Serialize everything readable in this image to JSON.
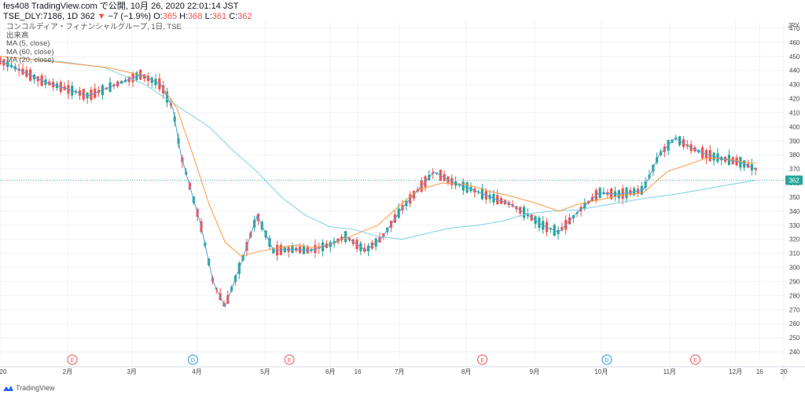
{
  "header": {
    "line1": "fes408 TradingView.com で公開, 10月 26, 2020 22:01:14 JST",
    "symbol": "TSE_DLY:7186, 1D",
    "last": "362",
    "change": "−7 (−1.9%)",
    "o_label": "O:",
    "o": "365",
    "h_label": "H:",
    "h": "368",
    "l_label": "L:",
    "l": "361",
    "c_label": "C:",
    "c": "362"
  },
  "legend": {
    "title": "コンコルディア・フィナンシャルグループ, 1日, TSE",
    "volume": "出来高",
    "ma1": "MA (5, close)",
    "ma2": "MA (60, close)",
    "ma3": "MA (20, close)"
  },
  "footer": {
    "brand": "TradingView"
  },
  "colors": {
    "up": "#26a69a",
    "down": "#ef5350",
    "ma5": "#5b9bd5",
    "ma20": "#ff9a40",
    "ma60": "#7fd0e6",
    "price_line": "#26a69a",
    "grid": "#f0f3fa"
  },
  "chart_data": {
    "type": "candlestick",
    "title": "コンコルディア・フィナンシャルグループ, 1日, TSE",
    "ylabel": "JPY",
    "y_ticks": [
      240,
      250,
      260,
      270,
      280,
      290,
      300,
      310,
      320,
      330,
      340,
      350,
      360,
      370,
      380,
      390,
      400,
      410,
      420,
      430,
      440,
      450,
      460,
      470
    ],
    "ylim": [
      235,
      475
    ],
    "x_ticks": [
      "20",
      "2月",
      "3月",
      "4月",
      "5月",
      "6月",
      "16",
      "7月",
      "8月",
      "9月",
      "10月",
      "11月",
      "12月",
      "16",
      "20"
    ],
    "current_price": 362,
    "events": [
      "E",
      "D",
      "E",
      "E",
      "D",
      "E"
    ],
    "ma5": [
      [
        2020.0,
        447
      ],
      [
        2020.055,
        432
      ],
      [
        2020.11,
        422
      ],
      [
        2020.175,
        437
      ],
      [
        2020.2,
        430
      ],
      [
        2020.215,
        413
      ],
      [
        2020.225,
        380
      ],
      [
        2020.25,
        330
      ],
      [
        2020.265,
        290
      ],
      [
        2020.28,
        272
      ],
      [
        2020.3,
        303
      ],
      [
        2020.32,
        337
      ],
      [
        2020.34,
        312
      ],
      [
        2020.365,
        313
      ],
      [
        2020.385,
        312
      ],
      [
        2020.41,
        316
      ],
      [
        2020.43,
        322
      ],
      [
        2020.455,
        312
      ],
      [
        2020.475,
        321
      ],
      [
        2020.5,
        342
      ],
      [
        2020.52,
        355
      ],
      [
        2020.54,
        368
      ],
      [
        2020.565,
        360
      ],
      [
        2020.585,
        356
      ],
      [
        2020.61,
        350
      ],
      [
        2020.635,
        345
      ],
      [
        2020.655,
        338
      ],
      [
        2020.675,
        330
      ],
      [
        2020.695,
        325
      ],
      [
        2020.72,
        340
      ],
      [
        2020.745,
        353
      ],
      [
        2020.77,
        352
      ],
      [
        2020.8,
        355
      ],
      [
        2020.82,
        380
      ],
      [
        2020.84,
        392
      ],
      [
        2020.86,
        385
      ],
      [
        2020.88,
        380
      ],
      [
        2020.9,
        377
      ],
      [
        2020.92,
        375
      ],
      [
        2020.94,
        370
      ]
    ],
    "ma20": [
      [
        2020.0,
        450
      ],
      [
        2020.07,
        446
      ],
      [
        2020.135,
        442
      ],
      [
        2020.18,
        436
      ],
      [
        2020.2,
        430
      ],
      [
        2020.22,
        413
      ],
      [
        2020.24,
        380
      ],
      [
        2020.26,
        345
      ],
      [
        2020.28,
        318
      ],
      [
        2020.3,
        308
      ],
      [
        2020.32,
        311
      ],
      [
        2020.345,
        314
      ],
      [
        2020.37,
        316
      ],
      [
        2020.39,
        314
      ],
      [
        2020.41,
        316
      ],
      [
        2020.44,
        323
      ],
      [
        2020.47,
        330
      ],
      [
        2020.495,
        343
      ],
      [
        2020.52,
        355
      ],
      [
        2020.55,
        360
      ],
      [
        2020.58,
        359
      ],
      [
        2020.61,
        354
      ],
      [
        2020.64,
        350
      ],
      [
        2020.67,
        345
      ],
      [
        2020.695,
        340
      ],
      [
        2020.72,
        345
      ],
      [
        2020.745,
        348
      ],
      [
        2020.77,
        351
      ],
      [
        2020.8,
        353
      ],
      [
        2020.83,
        368
      ],
      [
        2020.86,
        374
      ],
      [
        2020.88,
        378
      ],
      [
        2020.905,
        377
      ],
      [
        2020.925,
        375
      ],
      [
        2020.94,
        374
      ]
    ],
    "ma60": [
      [
        2020.0,
        450
      ],
      [
        2020.08,
        446
      ],
      [
        2020.13,
        442
      ],
      [
        2020.18,
        430
      ],
      [
        2020.22,
        415
      ],
      [
        2020.26,
        400
      ],
      [
        2020.29,
        383
      ],
      [
        2020.32,
        368
      ],
      [
        2020.35,
        350
      ],
      [
        2020.38,
        337
      ],
      [
        2020.41,
        329
      ],
      [
        2020.44,
        327
      ],
      [
        2020.47,
        322
      ],
      [
        2020.5,
        320
      ],
      [
        2020.53,
        324
      ],
      [
        2020.56,
        328
      ],
      [
        2020.595,
        330
      ],
      [
        2020.625,
        333
      ],
      [
        2020.655,
        338
      ],
      [
        2020.685,
        340
      ],
      [
        2020.72,
        341
      ],
      [
        2020.76,
        345
      ],
      [
        2020.8,
        349
      ],
      [
        2020.84,
        352
      ],
      [
        2020.88,
        356
      ],
      [
        2020.91,
        359
      ],
      [
        2020.94,
        362
      ]
    ]
  }
}
